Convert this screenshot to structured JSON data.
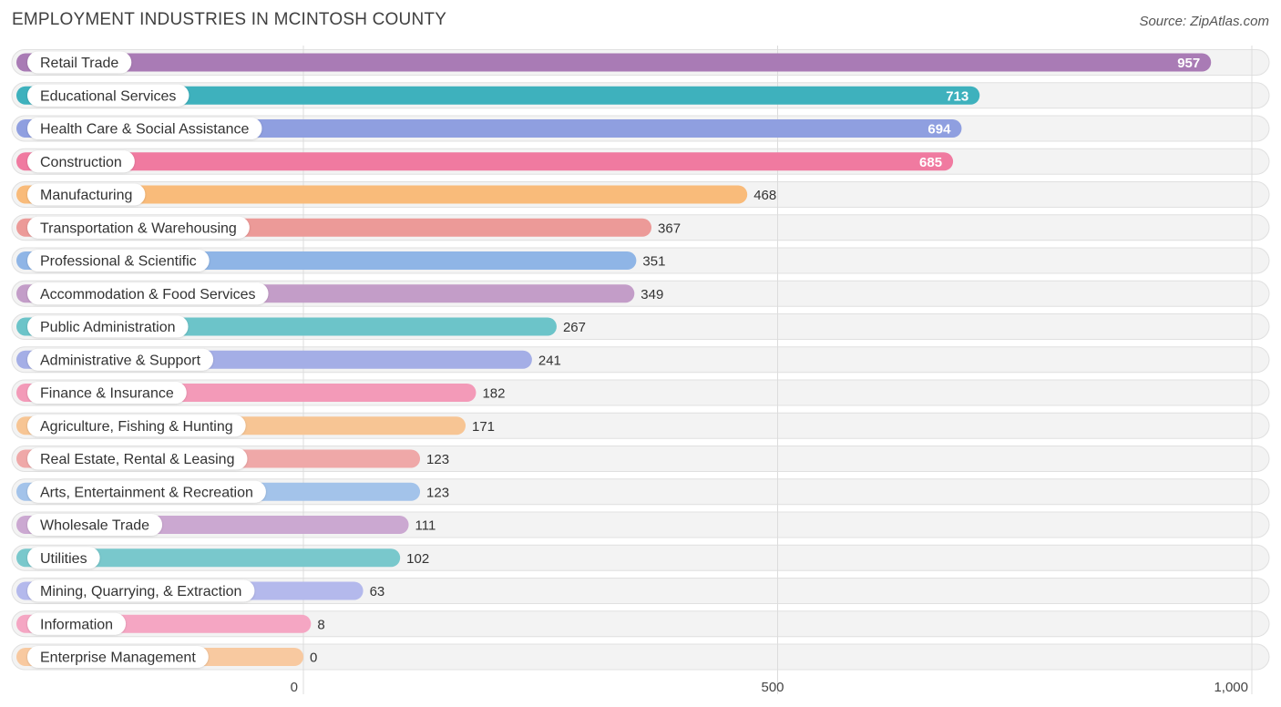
{
  "header": {
    "title": "EMPLOYMENT INDUSTRIES IN MCINTOSH COUNTY",
    "source": "Source: ZipAtlas.com"
  },
  "chart_data": {
    "type": "bar",
    "orientation": "horizontal",
    "title": "EMPLOYMENT INDUSTRIES IN MCINTOSH COUNTY",
    "xlabel": "",
    "ylabel": "",
    "xlim": [
      0,
      1000
    ],
    "ticks": [
      0,
      500,
      1000
    ],
    "tick_labels": [
      "0",
      "500",
      "1,000"
    ],
    "grid": true,
    "categories": [
      "Retail Trade",
      "Educational Services",
      "Health Care & Social Assistance",
      "Construction",
      "Manufacturing",
      "Transportation & Warehousing",
      "Professional & Scientific",
      "Accommodation & Food Services",
      "Public Administration",
      "Administrative & Support",
      "Finance & Insurance",
      "Agriculture, Fishing & Hunting",
      "Real Estate, Rental & Leasing",
      "Arts, Entertainment & Recreation",
      "Wholesale Trade",
      "Utilities",
      "Mining, Quarrying, & Extraction",
      "Information",
      "Enterprise Management"
    ],
    "values": [
      957,
      713,
      694,
      685,
      468,
      367,
      351,
      349,
      267,
      241,
      182,
      171,
      123,
      123,
      111,
      102,
      63,
      8,
      0
    ],
    "value_labels": [
      "957",
      "713",
      "694",
      "685",
      "468",
      "367",
      "351",
      "349",
      "267",
      "241",
      "182",
      "171",
      "123",
      "123",
      "111",
      "102",
      "63",
      "8",
      "0"
    ],
    "colors": [
      "#a97bb5",
      "#3eb1bd",
      "#8f9fe0",
      "#f07aa0",
      "#f9bb7a",
      "#ec9a98",
      "#8fb5e6",
      "#c39dc8",
      "#6cc4c9",
      "#a4aee6",
      "#f39ab8",
      "#f7c594",
      "#efa8a8",
      "#a3c3ea",
      "#cba8d1",
      "#79c8cc",
      "#b4b9ec",
      "#f5a6c3",
      "#f8c9a0"
    ]
  }
}
